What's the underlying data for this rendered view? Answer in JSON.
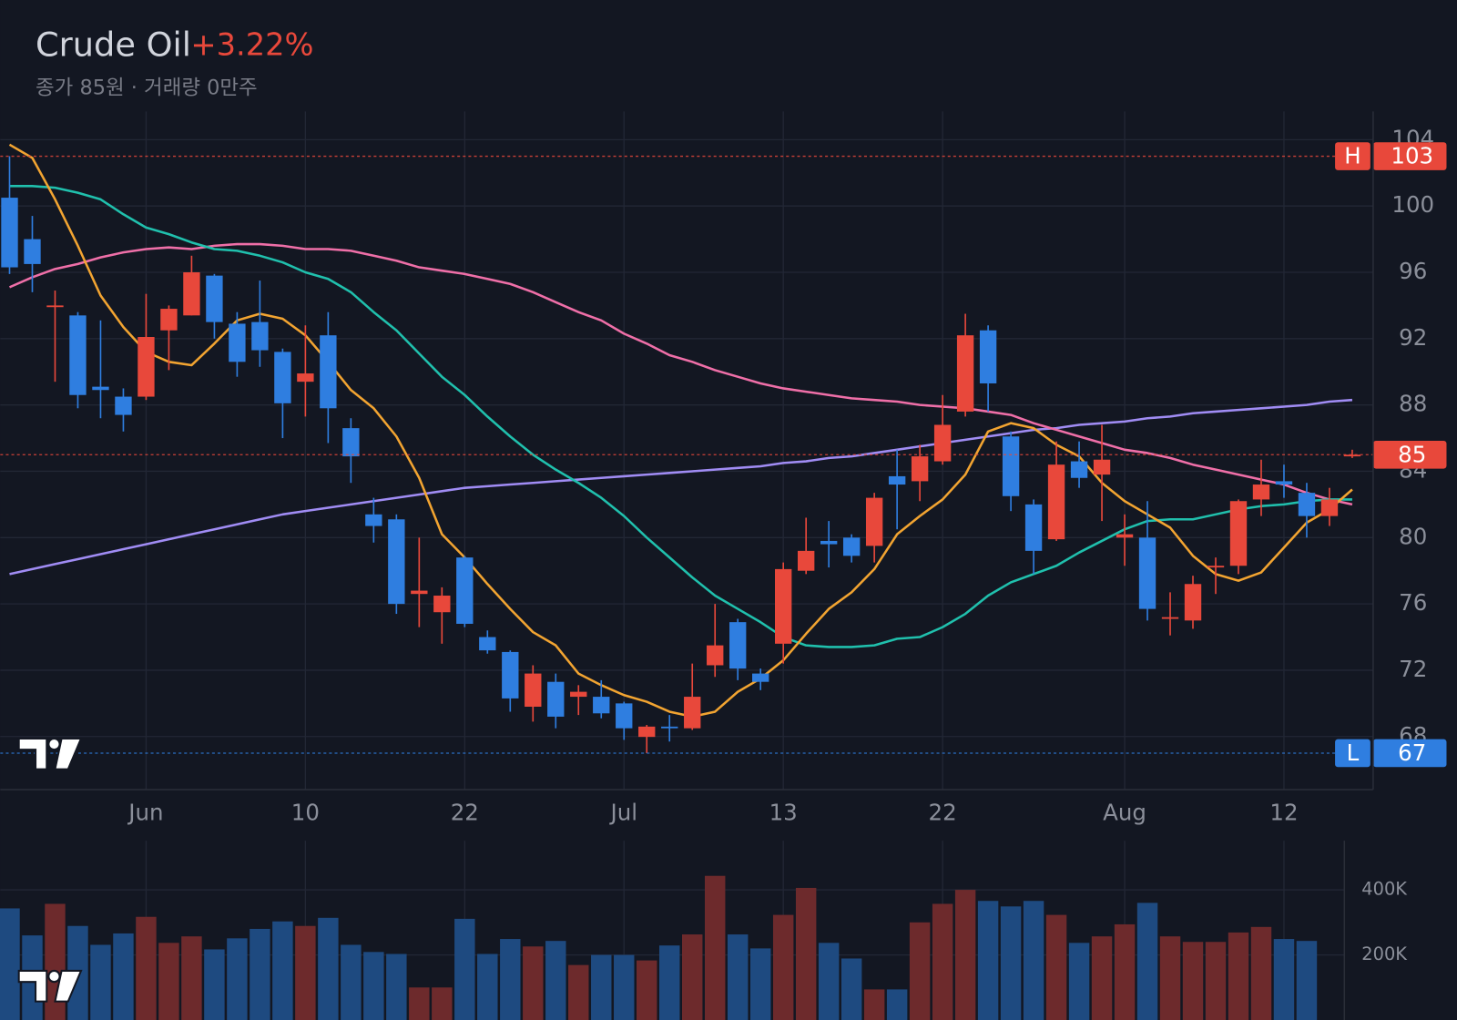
{
  "chart_data": {
    "type": "candlestick",
    "title": "Crude Oil",
    "change": "+3.22%",
    "subtitle": "종가 85원 · 거래량 0만주",
    "categories": [
      null,
      null,
      null,
      null,
      null,
      null,
      "Jun",
      null,
      null,
      null,
      null,
      null,
      null,
      "10",
      null,
      null,
      null,
      null,
      null,
      null,
      "22",
      null,
      null,
      null,
      null,
      null,
      null,
      "Jul",
      null,
      null,
      null,
      null,
      null,
      null,
      "13",
      null,
      null,
      null,
      null,
      null,
      null,
      "22",
      null,
      null,
      null,
      null,
      null,
      null,
      null,
      "Aug",
      null,
      null,
      null,
      null,
      null,
      null,
      "12",
      null,
      null,
      null
    ],
    "open": [
      100.5,
      98.0,
      93.9,
      93.4,
      89.1,
      88.5,
      88.5,
      92.5,
      93.4,
      95.8,
      92.9,
      93.0,
      91.2,
      89.4,
      92.2,
      86.6,
      81.4,
      81.1,
      76.6,
      75.5,
      78.8,
      74.0,
      73.1,
      69.8,
      71.3,
      70.4,
      70.4,
      70.0,
      67.98,
      68.6,
      68.5,
      72.3,
      74.9,
      71.8,
      73.6,
      78.0,
      79.8,
      80.0,
      79.5,
      83.7,
      83.4,
      84.6,
      87.6,
      92.5,
      86.1,
      82.0,
      79.9,
      84.6,
      83.8,
      80.0,
      80.0,
      75.1,
      75.0,
      78.2,
      78.3,
      82.3,
      83.4,
      82.7,
      81.3,
      84.9
    ],
    "high": [
      103,
      99.4,
      94.9,
      93.6,
      93.1,
      89.0,
      94.7,
      94.0,
      97.0,
      95.9,
      93.6,
      95.5,
      91.4,
      92.8,
      93.6,
      87.2,
      82.4,
      81.4,
      80.0,
      77.0,
      78.9,
      74.4,
      73.2,
      72.3,
      71.8,
      71.1,
      71.4,
      70.1,
      68.7,
      69.3,
      72.4,
      76.0,
      75.1,
      72.1,
      78.5,
      81.2,
      81.0,
      80.2,
      82.7,
      85.3,
      85.6,
      88.6,
      93.5,
      92.8,
      86.4,
      82.3,
      85.8,
      85.8,
      86.8,
      81.4,
      82.2,
      76.7,
      77.7,
      78.8,
      82.3,
      84.7,
      84.4,
      83.3,
      83.0,
      85.3
    ],
    "low": [
      95.9,
      94.8,
      89.4,
      87.8,
      87.2,
      86.4,
      88.3,
      90.1,
      93.4,
      92.0,
      89.7,
      90.3,
      86.0,
      87.3,
      85.7,
      83.3,
      79.7,
      75.4,
      74.6,
      73.6,
      74.6,
      73.0,
      69.5,
      68.9,
      68.5,
      69.3,
      69.1,
      67.8,
      67,
      67.7,
      68.4,
      71.6,
      71.4,
      70.8,
      72.4,
      77.8,
      78.2,
      78.5,
      78.5,
      80.5,
      82.2,
      84.4,
      87.3,
      87.6,
      81.6,
      77.8,
      79.8,
      83.0,
      81.0,
      78.3,
      75.0,
      74.1,
      74.5,
      76.6,
      77.8,
      81.3,
      82.4,
      80.0,
      80.7,
      84.8
    ],
    "close": [
      96.3,
      96.5,
      94.0,
      88.6,
      88.9,
      87.4,
      92.1,
      93.8,
      96.0,
      93.0,
      90.6,
      91.3,
      88.1,
      89.9,
      87.8,
      84.9,
      80.7,
      76.0,
      76.8,
      76.5,
      74.8,
      73.2,
      70.3,
      71.8,
      69.2,
      70.7,
      69.4,
      68.5,
      68.6,
      68.5,
      70.4,
      73.5,
      72.1,
      71.3,
      78.1,
      79.2,
      79.6,
      78.9,
      82.4,
      83.2,
      84.9,
      86.8,
      92.2,
      89.3,
      82.5,
      79.2,
      84.4,
      83.6,
      84.7,
      80.2,
      75.7,
      75.2,
      77.2,
      78.3,
      82.2,
      83.2,
      83.2,
      81.3,
      82.3,
      85.0
    ],
    "up_color": "#e8483b",
    "down_color": "#2f7ee0",
    "series": [
      {
        "color": "#a08cf4",
        "values": [
          77.8,
          78.1,
          78.4,
          78.7,
          79.0,
          79.3,
          79.6,
          79.9,
          80.2,
          80.5,
          80.8,
          81.1,
          81.4,
          81.6,
          81.8,
          82.0,
          82.2,
          82.4,
          82.6,
          82.8,
          83.0,
          83.1,
          83.2,
          83.3,
          83.4,
          83.5,
          83.6,
          83.7,
          83.8,
          83.9,
          84.0,
          84.1,
          84.2,
          84.3,
          84.5,
          84.6,
          84.8,
          84.9,
          85.1,
          85.3,
          85.5,
          85.7,
          85.9,
          86.1,
          86.3,
          86.5,
          86.6,
          86.8,
          86.9,
          87.0,
          87.2,
          87.3,
          87.5,
          87.6,
          87.7,
          87.8,
          87.9,
          88.0,
          88.2,
          88.3
        ]
      },
      {
        "color": "#ef6fa8",
        "values": [
          95.1,
          95.7,
          96.2,
          96.5,
          96.9,
          97.2,
          97.4,
          97.5,
          97.4,
          97.6,
          97.7,
          97.7,
          97.6,
          97.4,
          97.4,
          97.3,
          97.0,
          96.7,
          96.3,
          96.1,
          95.9,
          95.6,
          95.3,
          94.8,
          94.2,
          93.6,
          93.1,
          92.3,
          91.7,
          91.0,
          90.6,
          90.1,
          89.7,
          89.3,
          89.0,
          88.8,
          88.6,
          88.4,
          88.3,
          88.2,
          88.0,
          87.9,
          87.8,
          87.6,
          87.4,
          86.9,
          86.5,
          86.1,
          85.7,
          85.3,
          85.1,
          84.8,
          84.4,
          84.1,
          83.8,
          83.5,
          83.2,
          82.7,
          82.3,
          82.0
        ]
      },
      {
        "color": "#20c0ad",
        "values": [
          101.2,
          101.2,
          101.1,
          100.8,
          100.4,
          99.5,
          98.7,
          98.3,
          97.8,
          97.4,
          97.3,
          97.0,
          96.6,
          96.0,
          95.6,
          94.8,
          93.6,
          92.5,
          91.1,
          89.7,
          88.6,
          87.3,
          86.1,
          85.0,
          84.1,
          83.3,
          82.4,
          81.3,
          80.0,
          78.8,
          77.6,
          76.5,
          75.7,
          74.9,
          74.0,
          73.5,
          73.4,
          73.4,
          73.5,
          73.9,
          74.0,
          74.6,
          75.4,
          76.5,
          77.3,
          77.8,
          78.3,
          79.1,
          79.8,
          80.5,
          81.0,
          81.1,
          81.1,
          81.4,
          81.7,
          81.9,
          82.0,
          82.2,
          82.3,
          82.3
        ]
      },
      {
        "color": "#f2a431",
        "values": [
          103.7,
          102.9,
          100.4,
          97.6,
          94.6,
          92.7,
          91.2,
          90.6,
          90.4,
          91.7,
          93.1,
          93.5,
          93.2,
          92.2,
          90.6,
          88.9,
          87.8,
          86.1,
          83.6,
          80.2,
          78.8,
          77.2,
          75.7,
          74.3,
          73.5,
          71.8,
          71.1,
          70.5,
          70.1,
          69.5,
          69.2,
          69.5,
          70.7,
          71.5,
          72.6,
          74.2,
          75.7,
          76.7,
          78.1,
          80.2,
          81.3,
          82.3,
          83.8,
          86.4,
          86.9,
          86.6,
          85.6,
          84.9,
          83.3,
          82.2,
          81.4,
          80.6,
          78.9,
          77.8,
          77.4,
          77.9,
          79.4,
          80.9,
          81.7,
          82.9
        ]
      }
    ],
    "ylim": [
      64.8,
      105.7
    ],
    "yticks": [
      68,
      72,
      76,
      80,
      84,
      88,
      92,
      96,
      100,
      104
    ],
    "grid": true,
    "high_marker": {
      "label": "H",
      "value": 103
    },
    "low_marker": {
      "label": "L",
      "value": 67
    },
    "last_price": 85,
    "volume": [
      343000,
      260000,
      357000,
      289000,
      231000,
      266000,
      317000,
      237000,
      257000,
      217000,
      251000,
      280000,
      303000,
      289000,
      314000,
      231000,
      209000,
      203000,
      100000,
      100000,
      311000,
      203000,
      249000,
      226000,
      243000,
      169000,
      200000,
      200000,
      183000,
      229000,
      263000,
      443000,
      263000,
      220000,
      323000,
      406000,
      237000,
      189000,
      94000,
      94000,
      300000,
      357000,
      400000,
      366000,
      349000,
      366000,
      323000,
      237000,
      257000,
      294000,
      360000,
      257000,
      240000,
      240000,
      269000,
      286000,
      249000,
      243000,
      null,
      null
    ],
    "volume_up_color": "#6d2a2c",
    "volume_down_color": "#1e4a80",
    "volume_ylim": [
      0,
      551000
    ],
    "volume_yticks": [
      {
        "value": 200000,
        "label": "200K"
      },
      {
        "value": 400000,
        "label": "400K"
      }
    ]
  }
}
